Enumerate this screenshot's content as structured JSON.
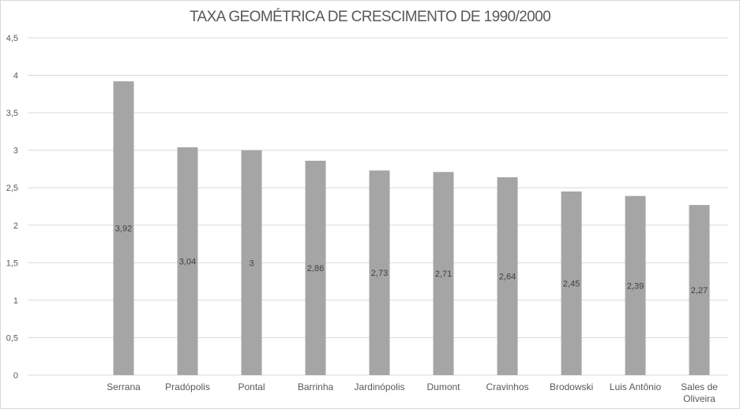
{
  "chart_data": {
    "type": "bar",
    "title": "TAXA GEOMÉTRICA DE CRESCIMENTO DE 1990/2000",
    "categories": [
      "Serrana",
      "Pradópolis",
      "Pontal",
      "Barrinha",
      "Jardinópolis",
      "Dumont",
      "Cravinhos",
      "Brodowski",
      "Luis Antônio",
      "Sales de Oliveira"
    ],
    "values": [
      3.92,
      3.04,
      3,
      2.86,
      2.73,
      2.71,
      2.64,
      2.45,
      2.39,
      2.27
    ],
    "data_labels": [
      "3,92",
      "3,04",
      "3",
      "2,86",
      "2,73",
      "2,71",
      "2,64",
      "2,45",
      "2,39",
      "2,27"
    ],
    "yticks": [
      "0",
      "0,5",
      "1",
      "1,5",
      "2",
      "2,5",
      "3",
      "3,5",
      "4",
      "4,5"
    ],
    "ylim": [
      0,
      4.5
    ],
    "grid": true,
    "legend": "none",
    "bar_color": "#a5a5a5",
    "grid_color": "#d9d9d9",
    "text_color": "#595959"
  }
}
